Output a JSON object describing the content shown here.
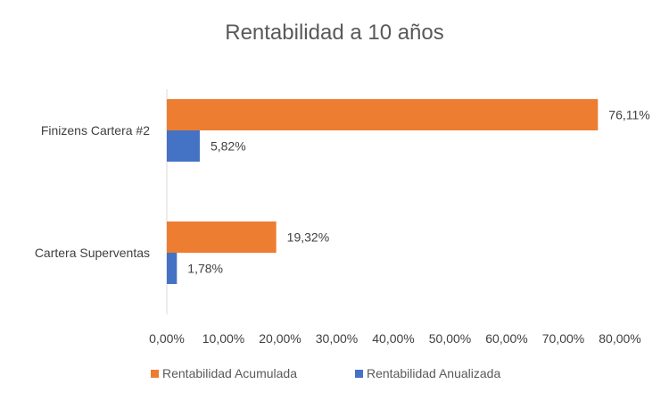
{
  "chart_data": {
    "type": "bar",
    "orientation": "horizontal",
    "title": "Rentabilidad a 10 años",
    "categories": [
      "Finizens Cartera #2",
      "Cartera Superventas"
    ],
    "series": [
      {
        "name": "Rentabilidad Acumulada",
        "color": "#ED7D31",
        "values": [
          76.11,
          19.32
        ],
        "labels": [
          "76,11%",
          "19,32%"
        ]
      },
      {
        "name": "Rentabilidad Anualizada",
        "color": "#4472C4",
        "values": [
          5.82,
          1.78
        ],
        "labels": [
          "5,82%",
          "1,78%"
        ]
      }
    ],
    "xlim": [
      0,
      80
    ],
    "xticks": [
      0,
      10,
      20,
      30,
      40,
      50,
      60,
      70,
      80
    ],
    "xtick_labels": [
      "0,00%",
      "10,00%",
      "20,00%",
      "30,00%",
      "40,00%",
      "50,00%",
      "60,00%",
      "70,00%",
      "80,00%"
    ],
    "grid": false,
    "legend_position": "bottom"
  }
}
